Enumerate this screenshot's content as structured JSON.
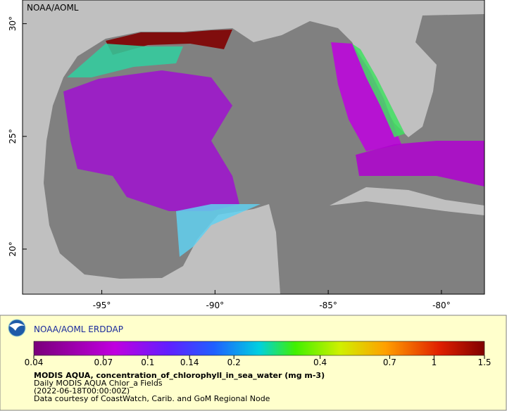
{
  "header": {
    "title": "NOAA/AOML"
  },
  "map": {
    "lonlim": [
      -98.5,
      -78.1
    ],
    "latlim": [
      18,
      31.05
    ],
    "lon_ticks": [
      {
        "value": -95,
        "label": "-95°"
      },
      {
        "value": -90,
        "label": "-90°"
      },
      {
        "value": -85,
        "label": "-85°"
      },
      {
        "value": -80,
        "label": "-80°"
      }
    ],
    "lat_ticks": [
      {
        "value": 20,
        "label": "20°"
      },
      {
        "value": 25,
        "label": "25°"
      },
      {
        "value": 30,
        "label": "30°"
      }
    ]
  },
  "legend": {
    "title": "NOAA/AOML ERDDAP",
    "colorbar": {
      "range": [
        0.04,
        1.5
      ],
      "log_scale": true,
      "ticks": [
        0.04,
        0.07,
        0.1,
        0.14,
        0.2,
        0.4,
        0.7,
        1,
        1.5
      ]
    },
    "variable": "MODIS AQUA, concentration_of_chlorophyll_in_sea_water (mg m-3)",
    "lines": [
      "Daily MODIS AQUA Chlor_a Fields",
      "(2022-06-18T00:00:00Z)",
      "Data courtesy of CoastWatch, Carib. and GoM Regional Node"
    ]
  }
}
